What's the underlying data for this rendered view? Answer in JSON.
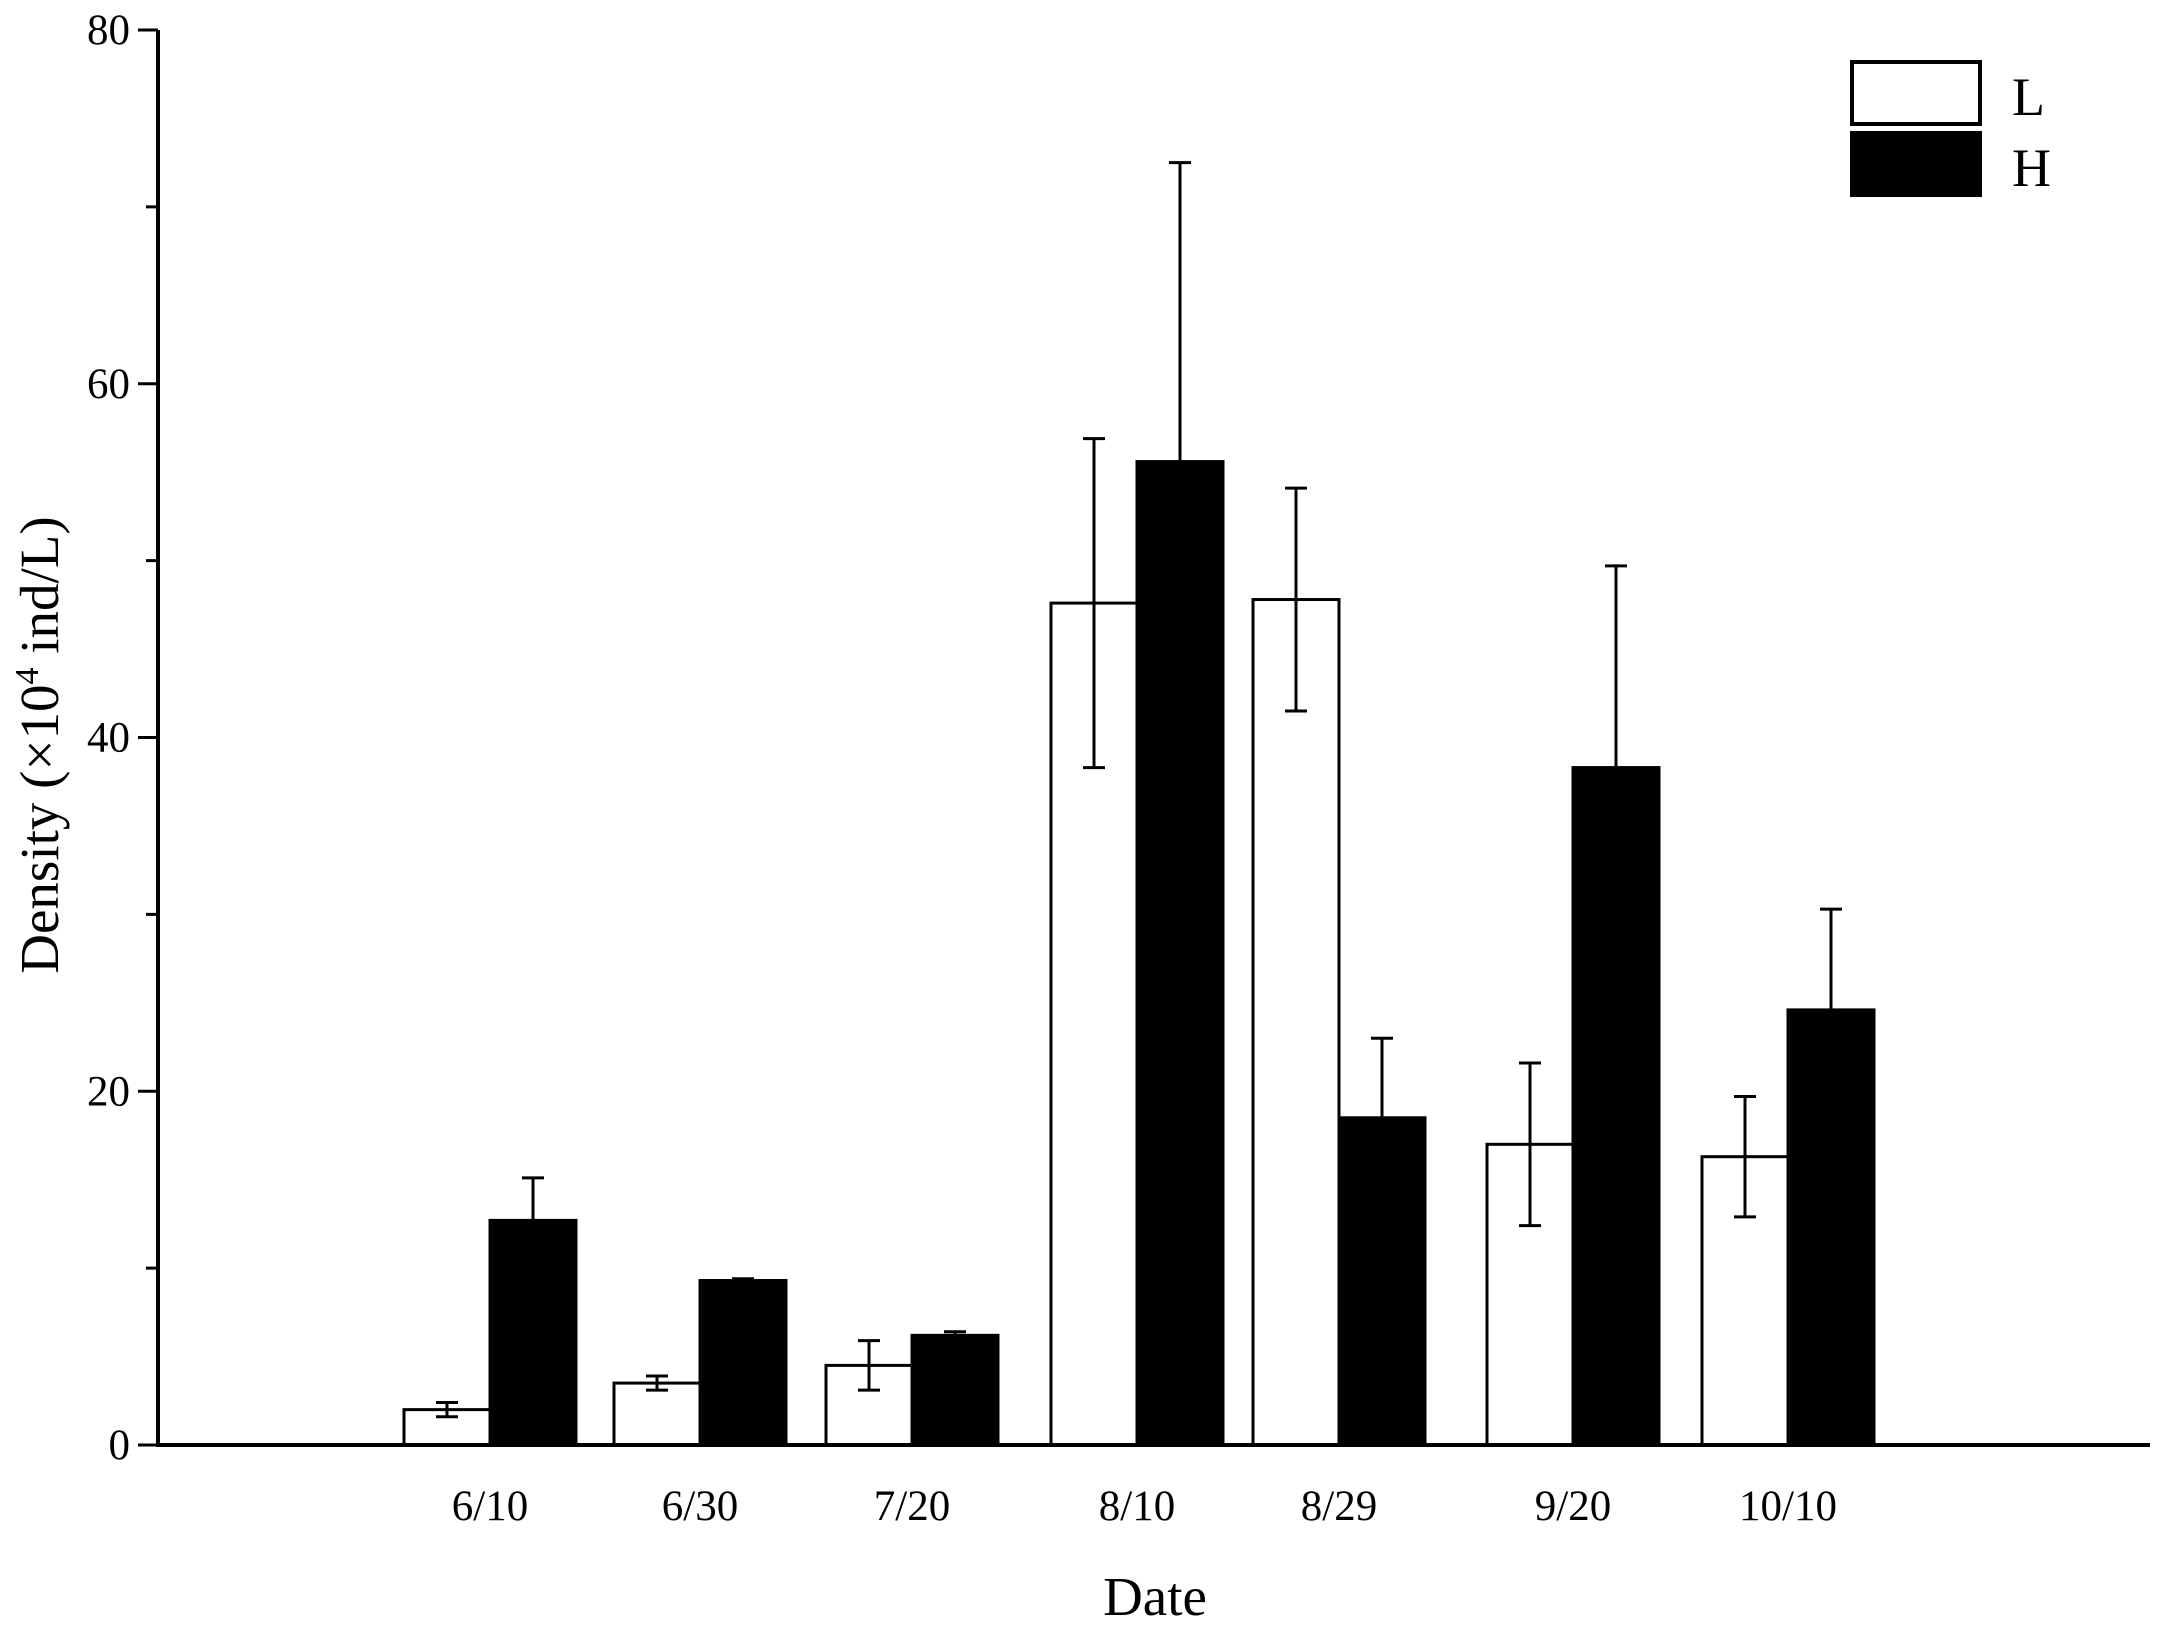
{
  "chart_data": {
    "type": "bar",
    "categories": [
      "6/10",
      "6/30",
      "7/20",
      "8/10",
      "8/29",
      "9/20",
      "10/10"
    ],
    "series": [
      {
        "name": "L",
        "color": "#ffffff",
        "values": [
          2.0,
          3.5,
          4.5,
          47.6,
          47.8,
          17.0,
          16.3
        ],
        "errors": [
          0.4,
          0.4,
          1.4,
          9.3,
          6.3,
          4.6,
          3.4
        ]
      },
      {
        "name": "H",
        "color": "#000000",
        "values": [
          12.7,
          9.3,
          6.2,
          55.6,
          18.5,
          38.3,
          24.6
        ],
        "errors": [
          2.4,
          0.1,
          0.2,
          16.9,
          4.5,
          11.4,
          5.7
        ]
      }
    ],
    "xlabel": "Date",
    "ylabel": {
      "prefix": "Density (×10",
      "superscript": "4",
      "suffix": " ind/L)"
    },
    "ylim": [
      0,
      80
    ],
    "yticks": [
      "0",
      "20",
      "40",
      "60",
      "80"
    ],
    "grid": false,
    "legend_position": "top-right"
  }
}
